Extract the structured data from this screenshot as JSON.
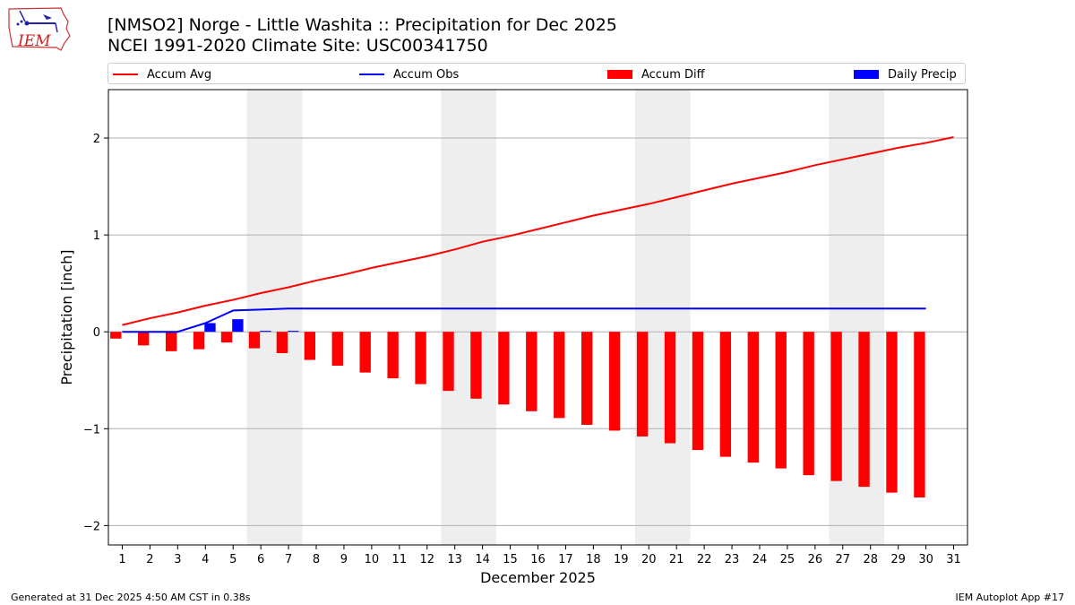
{
  "header": {
    "title_line1": "[NMSO2] Norge - Little Washita :: Precipitation for Dec 2025",
    "title_line2": "NCEI 1991-2020 Climate Site: USC00341750"
  },
  "logo": {
    "text": "IEM",
    "icon": "iowa-state-map-logo-icon"
  },
  "footer": {
    "left": "Generated at 31 Dec 2025 4:50 AM CST in 0.38s",
    "right": "IEM Autoplot App #17"
  },
  "chart_data": {
    "type": "bar",
    "xlabel": "December 2025",
    "ylabel": "Precipitation [inch]",
    "ylim": [
      -2.2,
      2.5
    ],
    "xlim": [
      0.5,
      31.5
    ],
    "yticks": [
      -2,
      -1,
      0,
      1,
      2
    ],
    "ytick_labels": [
      "−2",
      "−1",
      "0",
      "1",
      "2"
    ],
    "days": [
      1,
      2,
      3,
      4,
      5,
      6,
      7,
      8,
      9,
      10,
      11,
      12,
      13,
      14,
      15,
      16,
      17,
      18,
      19,
      20,
      21,
      22,
      23,
      24,
      25,
      26,
      27,
      28,
      29,
      30,
      31
    ],
    "grid": "horizontal",
    "weekend_shading": [
      [
        6,
        7
      ],
      [
        13,
        14
      ],
      [
        20,
        21
      ],
      [
        27,
        28
      ]
    ],
    "legend_placement": "top",
    "series": [
      {
        "name": "Accum Avg",
        "kind": "line",
        "color": "#ff0000",
        "x": [
          1,
          2,
          3,
          4,
          5,
          6,
          7,
          8,
          9,
          10,
          11,
          12,
          13,
          14,
          15,
          16,
          17,
          18,
          19,
          20,
          21,
          22,
          23,
          24,
          25,
          26,
          27,
          28,
          29,
          30,
          31
        ],
        "values": [
          0.07,
          0.14,
          0.2,
          0.27,
          0.33,
          0.4,
          0.46,
          0.53,
          0.59,
          0.66,
          0.72,
          0.78,
          0.85,
          0.93,
          0.99,
          1.06,
          1.13,
          1.2,
          1.26,
          1.32,
          1.39,
          1.46,
          1.53,
          1.59,
          1.65,
          1.72,
          1.78,
          1.84,
          1.9,
          1.95,
          2.01
        ]
      },
      {
        "name": "Accum Obs",
        "kind": "line",
        "color": "#0000ff",
        "x": [
          1,
          2,
          3,
          4,
          5,
          6,
          7,
          8,
          9,
          10,
          11,
          12,
          13,
          14,
          15,
          16,
          17,
          18,
          19,
          20,
          21,
          22,
          23,
          24,
          25,
          26,
          27,
          28,
          29,
          30
        ],
        "values": [
          0.0,
          0.0,
          0.0,
          0.09,
          0.22,
          0.23,
          0.24,
          0.24,
          0.24,
          0.24,
          0.24,
          0.24,
          0.24,
          0.24,
          0.24,
          0.24,
          0.24,
          0.24,
          0.24,
          0.24,
          0.24,
          0.24,
          0.24,
          0.24,
          0.24,
          0.24,
          0.24,
          0.24,
          0.24,
          0.24
        ]
      },
      {
        "name": "Accum Diff",
        "kind": "bar",
        "color": "#ff0000",
        "x": [
          1,
          2,
          3,
          4,
          5,
          6,
          7,
          8,
          9,
          10,
          11,
          12,
          13,
          14,
          15,
          16,
          17,
          18,
          19,
          20,
          21,
          22,
          23,
          24,
          25,
          26,
          27,
          28,
          29,
          30
        ],
        "values": [
          -0.07,
          -0.14,
          -0.2,
          -0.18,
          -0.11,
          -0.17,
          -0.22,
          -0.29,
          -0.35,
          -0.42,
          -0.48,
          -0.54,
          -0.61,
          -0.69,
          -0.75,
          -0.82,
          -0.89,
          -0.96,
          -1.02,
          -1.08,
          -1.15,
          -1.22,
          -1.29,
          -1.35,
          -1.41,
          -1.48,
          -1.54,
          -1.6,
          -1.66,
          -1.71
        ]
      },
      {
        "name": "Daily Precip",
        "kind": "bar",
        "color": "#0000ff",
        "x": [
          1,
          2,
          3,
          4,
          5,
          6,
          7,
          8,
          9,
          10,
          11,
          12,
          13,
          14,
          15,
          16,
          17,
          18,
          19,
          20,
          21,
          22,
          23,
          24,
          25,
          26,
          27,
          28,
          29,
          30
        ],
        "values": [
          0,
          0,
          0,
          0.09,
          0.13,
          0.01,
          0.01,
          0,
          0,
          0,
          0,
          0,
          0,
          0,
          0,
          0,
          0,
          0,
          0,
          0,
          0,
          0,
          0,
          0,
          0,
          0,
          0,
          0,
          0,
          0
        ]
      }
    ]
  }
}
